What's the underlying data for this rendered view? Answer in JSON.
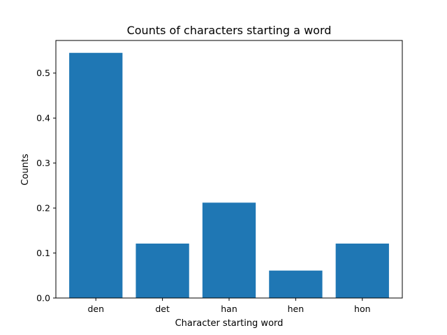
{
  "chart_data": {
    "type": "bar",
    "title": "Counts of characters starting a word",
    "xlabel": "Character starting word",
    "ylabel": "Counts",
    "categories": [
      "den",
      "det",
      "han",
      "hen",
      "hon"
    ],
    "values": [
      0.545,
      0.121,
      0.212,
      0.061,
      0.121
    ],
    "ylim": [
      0,
      0.5725
    ],
    "yticks": [
      0.0,
      0.1,
      0.2,
      0.3,
      0.4,
      0.5
    ],
    "ytick_labels": [
      "0.0",
      "0.1",
      "0.2",
      "0.3",
      "0.4",
      "0.5"
    ],
    "grid": false,
    "bar_color": "#1f77b4"
  }
}
